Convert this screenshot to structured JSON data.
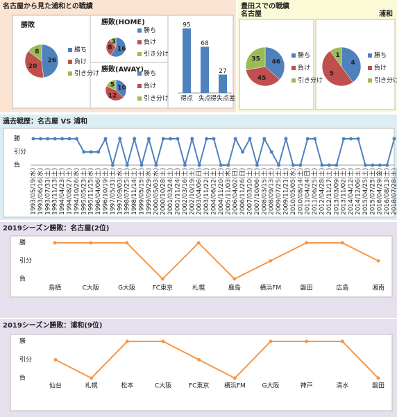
{
  "sections": [
    "名古屋から見た浦和との戦績",
    "豊田スでの戦績"
  ],
  "chart_data": [
    {
      "type": "pie",
      "title": "勝敗",
      "categories": [
        "勝ち",
        "負け",
        "引き分け"
      ],
      "values": [
        26,
        20,
        8
      ],
      "colors": [
        "#4f81bd",
        "#c0504d",
        "#9bbb59"
      ]
    },
    {
      "type": "pie",
      "title": "勝敗(HOME)",
      "categories": [
        "勝ち",
        "負け",
        "引き分け"
      ],
      "values": [
        16,
        8,
        3
      ],
      "colors": [
        "#4f81bd",
        "#c0504d",
        "#9bbb59"
      ]
    },
    {
      "type": "pie",
      "title": "勝敗(AWAY)",
      "categories": [
        "勝ち",
        "負け",
        "引き分け"
      ],
      "values": [
        10,
        12,
        5
      ],
      "colors": [
        "#4f81bd",
        "#c0504d",
        "#9bbb59"
      ]
    },
    {
      "type": "bar",
      "categories": [
        "得点",
        "失点",
        "得失点差"
      ],
      "values": [
        95,
        68,
        27
      ],
      "color": "#4f81bd",
      "ylim": [
        0,
        100
      ]
    },
    {
      "type": "pie",
      "title": "名古屋",
      "categories": [
        "勝ち",
        "負け",
        "引き分け"
      ],
      "values": [
        46,
        45,
        35
      ],
      "colors": [
        "#4f81bd",
        "#c0504d",
        "#9bbb59"
      ]
    },
    {
      "type": "pie",
      "title": "浦和",
      "categories": [
        "勝ち",
        "負け",
        "引き分け"
      ],
      "values": [
        4,
        5,
        1
      ],
      "colors": [
        "#4f81bd",
        "#c0504d",
        "#9bbb59"
      ]
    },
    {
      "type": "line",
      "title": "過去戦歴：名古屋 VS 浦和",
      "color": "#4f81bd",
      "ylim": [
        0,
        2
      ],
      "yticks": [
        {
          "value": 0,
          "label": "負"
        },
        {
          "value": 1,
          "label": "引分"
        },
        {
          "value": 2,
          "label": "勝"
        }
      ],
      "categories": [
        "1993/05/19(水)",
        "1993/06/16(水)",
        "1993/07/31(土)",
        "1993/11/13(土)",
        "1994/04/23(土)",
        "1994/08/27(土)",
        "1994/10/26(水)",
        "1995/05/23(土)",
        "1995/11/15(水)",
        "1996/04/06(土)",
        "1996/10/19(土)",
        "1997/05/31(土)",
        "1997/09/03(水)",
        "1998/07/25(土)",
        "1998/11/14(土)",
        "1999/05/15(土)",
        "1999/09/29(水)",
        "2000/05/03(水)",
        "2000/10/28(土)",
        "2001/03/24(土)",
        "2001/11/24(土)",
        "2002/03/16(土)",
        "2002/10/19(土)",
        "2003/04/06(日)",
        "2003/11/22(土)",
        "2004/06/12(土)",
        "2004/11/20(土)",
        "2005/11/03(木)",
        "2006/04/02(日)",
        "2006/11/26(日)",
        "2007/03/10(土)",
        "2007/10/06(土)",
        "2008/03/15(土)",
        "2008/09/13(土)",
        "2009/07/25(土)",
        "2009/11/21(土)",
        "2010/05/05(水)",
        "2010/08/14(土)",
        "2011/04/24(日)",
        "2011/06/25(土)",
        "2012/04/28(土)",
        "2012/11/17(土)",
        "2013/03/09(土)",
        "2013/11/02(土)",
        "2014/04/12(土)",
        "2014/12/06(土)",
        "2015/04/25(土)",
        "2015/07/25(土)",
        "2016/04/29(金)",
        "2016/08/13(土)",
        "2018/07/28(土)"
      ],
      "values": [
        2,
        2,
        2,
        2,
        2,
        2,
        2,
        1,
        1,
        1,
        2,
        0,
        2,
        0,
        2,
        0,
        2,
        0,
        2,
        2,
        2,
        0,
        2,
        0,
        2,
        2,
        0,
        0,
        2,
        1,
        2,
        0,
        2,
        1,
        0,
        2,
        0,
        0,
        2,
        2,
        0,
        0,
        0,
        2,
        2,
        2,
        0,
        0,
        0,
        0,
        2
      ]
    },
    {
      "type": "line",
      "title": "2019シーズン勝敗：名古屋(2位)",
      "color": "#f79646",
      "ylim": [
        0,
        2
      ],
      "yticks": [
        {
          "value": 0,
          "label": "負"
        },
        {
          "value": 1,
          "label": "引分"
        },
        {
          "value": 2,
          "label": "勝"
        }
      ],
      "categories": [
        "鳥栖",
        "C大阪",
        "G大阪",
        "FC東京",
        "札幌",
        "鹿島",
        "横浜FM",
        "磐田",
        "広島",
        "湘南"
      ],
      "values": [
        2,
        2,
        2,
        0,
        2,
        0,
        1,
        2,
        2,
        1
      ]
    },
    {
      "type": "line",
      "title": "2019シーズン勝敗：浦和(9位)",
      "color": "#f79646",
      "ylim": [
        0,
        2
      ],
      "yticks": [
        {
          "value": 0,
          "label": "負"
        },
        {
          "value": 1,
          "label": "引分"
        },
        {
          "value": 2,
          "label": "勝"
        }
      ],
      "categories": [
        "仙台",
        "札幌",
        "松本",
        "C大阪",
        "FC東京",
        "横浜FM",
        "G大阪",
        "神戸",
        "清水",
        "磐田"
      ],
      "values": [
        1,
        0,
        2,
        2,
        1,
        0,
        2,
        2,
        2,
        0
      ]
    }
  ]
}
